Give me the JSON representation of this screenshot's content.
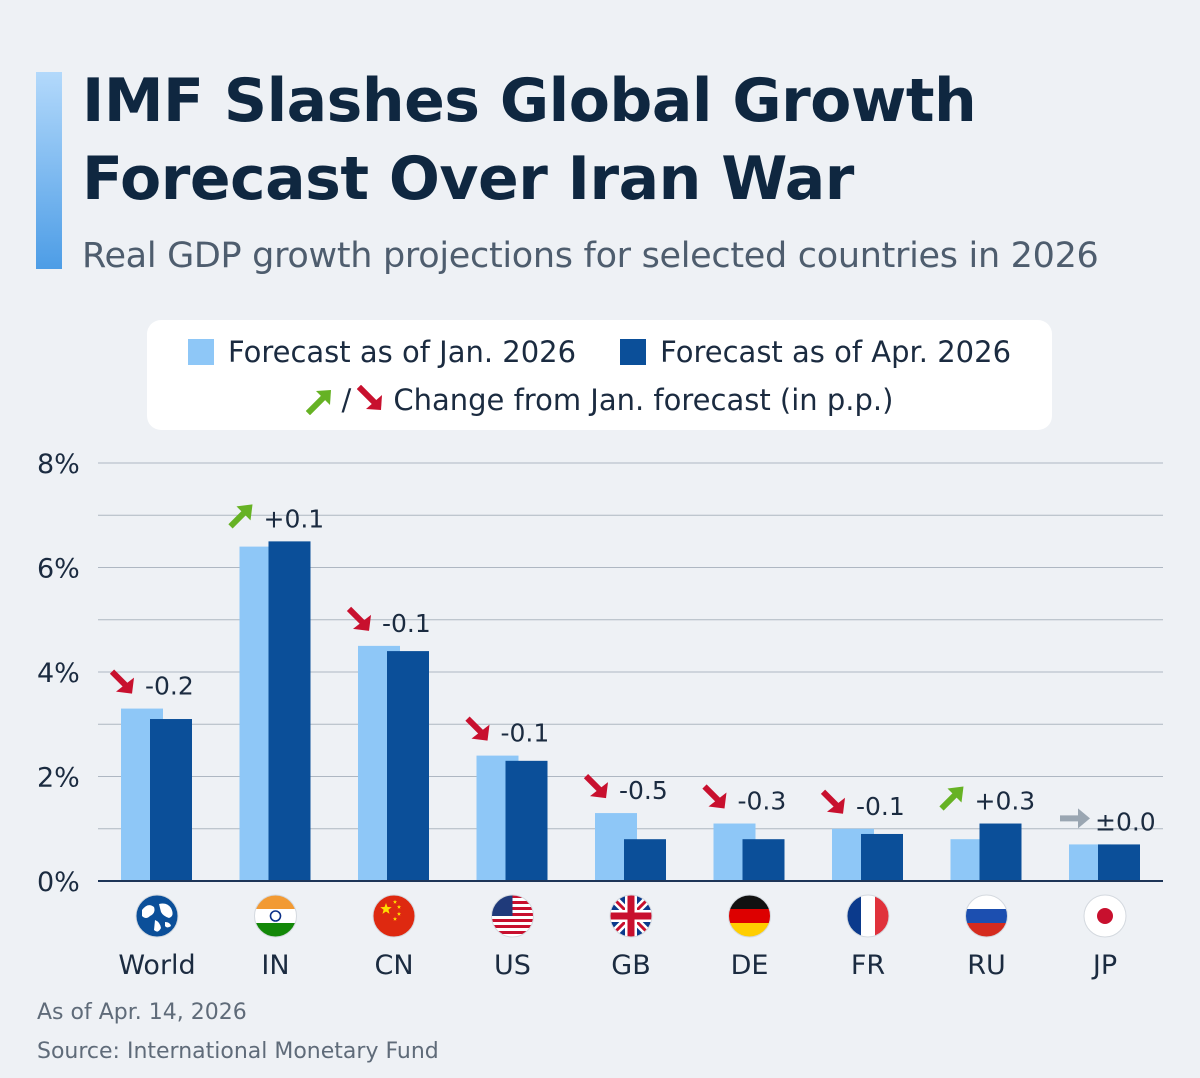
{
  "header": {
    "title": "IMF Slashes Global Growth Forecast Over Iran War",
    "subtitle": "Real GDP growth projections for selected countries in 2026"
  },
  "legend": {
    "jan_label": "Forecast as of Jan. 2026",
    "apr_label": "Forecast as of Apr. 2026",
    "change_separator": "/",
    "change_label": "Change from Jan. forecast (in p.p.)"
  },
  "colors": {
    "jan": "#8ec7f7",
    "apr": "#0b4f99",
    "up": "#66b224",
    "down": "#c8102e",
    "flat": "#9aa6b2",
    "axis": "#1d3557",
    "grid": "#aeb7c2"
  },
  "chart_data": {
    "type": "bar",
    "categories": [
      "World",
      "IN",
      "CN",
      "US",
      "GB",
      "DE",
      "FR",
      "RU",
      "JP"
    ],
    "flag_icons": [
      "globe-icon",
      "india-flag-icon",
      "china-flag-icon",
      "usa-flag-icon",
      "uk-flag-icon",
      "germany-flag-icon",
      "france-flag-icon",
      "russia-flag-icon",
      "japan-flag-icon"
    ],
    "series": [
      {
        "name": "Forecast as of Jan. 2026",
        "values": [
          3.3,
          6.4,
          4.5,
          2.4,
          1.3,
          1.1,
          1.0,
          0.8,
          0.7
        ]
      },
      {
        "name": "Forecast as of Apr. 2026",
        "values": [
          3.1,
          6.5,
          4.4,
          2.3,
          0.8,
          0.8,
          0.9,
          1.1,
          0.7
        ]
      }
    ],
    "change_labels": [
      "-0.2",
      "+0.1",
      "-0.1",
      "-0.1",
      "-0.5",
      "-0.3",
      "-0.1",
      "+0.3",
      "±0.0"
    ],
    "change_direction": [
      "down",
      "up",
      "down",
      "down",
      "down",
      "down",
      "down",
      "up",
      "flat"
    ],
    "y_ticks": [
      "0%",
      "2%",
      "4%",
      "6%",
      "8%"
    ],
    "ylim": [
      0,
      8
    ],
    "grid": true,
    "legend_position": "top"
  },
  "footer": {
    "as_of": "As of Apr. 14, 2026",
    "source": "Source: International Monetary Fund"
  }
}
